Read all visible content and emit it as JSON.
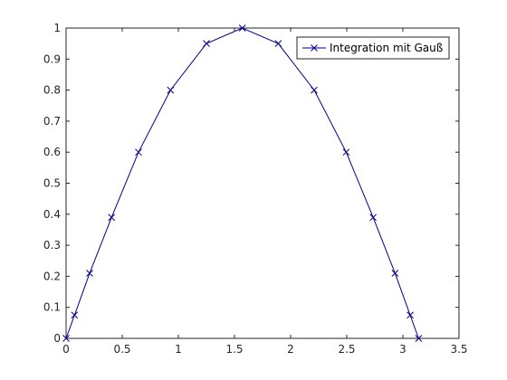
{
  "chart_data": {
    "type": "line",
    "title": "",
    "xlabel": "",
    "ylabel": "",
    "xlim": [
      0,
      3.5
    ],
    "ylim": [
      0,
      1
    ],
    "xticks": [
      0,
      0.5,
      1,
      1.5,
      2,
      2.5,
      3,
      3.5
    ],
    "xtick_labels": [
      "0",
      "0.5",
      "1",
      "1.5",
      "2",
      "2.5",
      "3",
      "3.5"
    ],
    "yticks": [
      0,
      0.1,
      0.2,
      0.3,
      0.4,
      0.5,
      0.6,
      0.7,
      0.8,
      0.9,
      1
    ],
    "ytick_labels": [
      "0",
      "0.1",
      "0.2",
      "0.3",
      "0.4",
      "0.5",
      "0.6",
      "0.7",
      "0.8",
      "0.9",
      "1"
    ],
    "grid": false,
    "legend_position": "top-right",
    "series": [
      {
        "name": "Integration mit Gauß",
        "color": "#00008b",
        "marker": "x",
        "x": [
          0.0,
          0.075,
          0.21,
          0.405,
          0.645,
          0.93,
          1.25,
          1.57,
          1.89,
          2.21,
          2.495,
          2.735,
          2.93,
          3.065,
          3.14
        ],
        "y": [
          0.0,
          0.075,
          0.21,
          0.39,
          0.6,
          0.8,
          0.95,
          1.0,
          0.95,
          0.8,
          0.6,
          0.39,
          0.21,
          0.075,
          0.0
        ]
      }
    ]
  }
}
